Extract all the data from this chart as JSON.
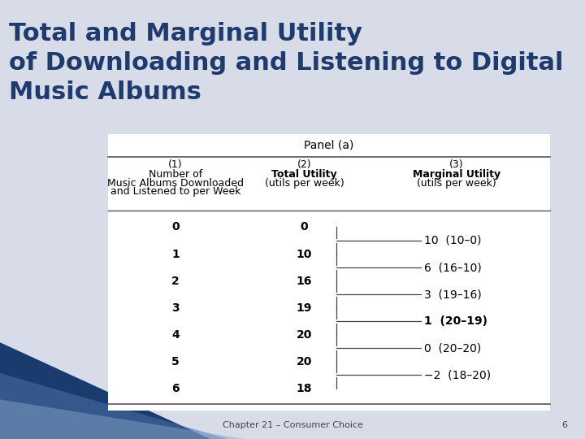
{
  "title_line1": "Total and Marginal Utility",
  "title_line2": "of Downloading and Listening to Digital",
  "title_line3": "Music Albums",
  "title_color": "#1F3B6E",
  "title_fontsize": 22,
  "bg_color_top": "#D8DCE8",
  "panel_title": "Panel (a)",
  "albums": [
    0,
    1,
    2,
    3,
    4,
    5,
    6
  ],
  "total_utility": [
    0,
    10,
    16,
    19,
    20,
    20,
    18
  ],
  "marginal_labels": [
    "10  (10–0)",
    "6  (16–10)",
    "3  (19–16)",
    "1  (20–19)",
    "0  (20–20)",
    "−2  (18–20)"
  ],
  "footer_text": "Chapter 21 – Consumer Choice",
  "footer_page": "6",
  "header_fontsize": 9,
  "data_fontsize": 10,
  "bold_marginal": [
    false,
    false,
    false,
    true,
    false,
    false
  ]
}
